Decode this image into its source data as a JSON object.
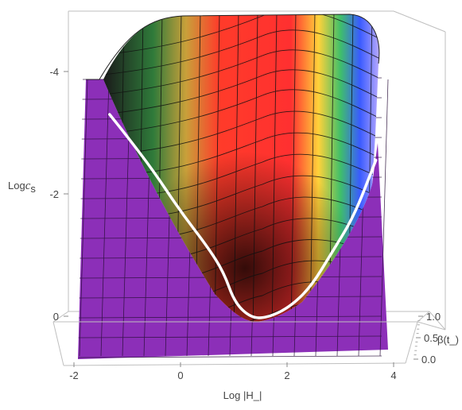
{
  "chart_data": {
    "type": "surface3d",
    "title": "",
    "xlabel": "Log |H_|",
    "ylabel_main": "Log",
    "ylabel_sub": "c",
    "ylabel_subscript": "s",
    "zlabel": "β(t_)",
    "x_ticks": [
      "-2",
      "0",
      "2",
      "4"
    ],
    "y_ticks": [
      "-4",
      "-2",
      "0"
    ],
    "z_ticks": [
      "1.0",
      "0.5",
      "0.0"
    ],
    "xlim": [
      -2,
      4
    ],
    "ylim": [
      0,
      -5
    ],
    "zlim": [
      0,
      1
    ],
    "colormap": "Rainbow",
    "floor_color": "#8c2fb8",
    "boundary_curve_color": "#ffffff",
    "boundary_curve": {
      "x": [
        -1.3,
        -1.0,
        -0.5,
        0.0,
        0.5,
        0.8,
        1.0,
        1.3,
        1.6,
        2.0,
        2.4,
        2.8,
        3.2,
        3.6
      ],
      "y": [
        -4.0,
        -3.6,
        -2.9,
        -2.1,
        -1.4,
        -0.9,
        -0.3,
        0.0,
        0.0,
        -0.2,
        -0.6,
        -1.3,
        -2.0,
        -3.1
      ]
    }
  }
}
